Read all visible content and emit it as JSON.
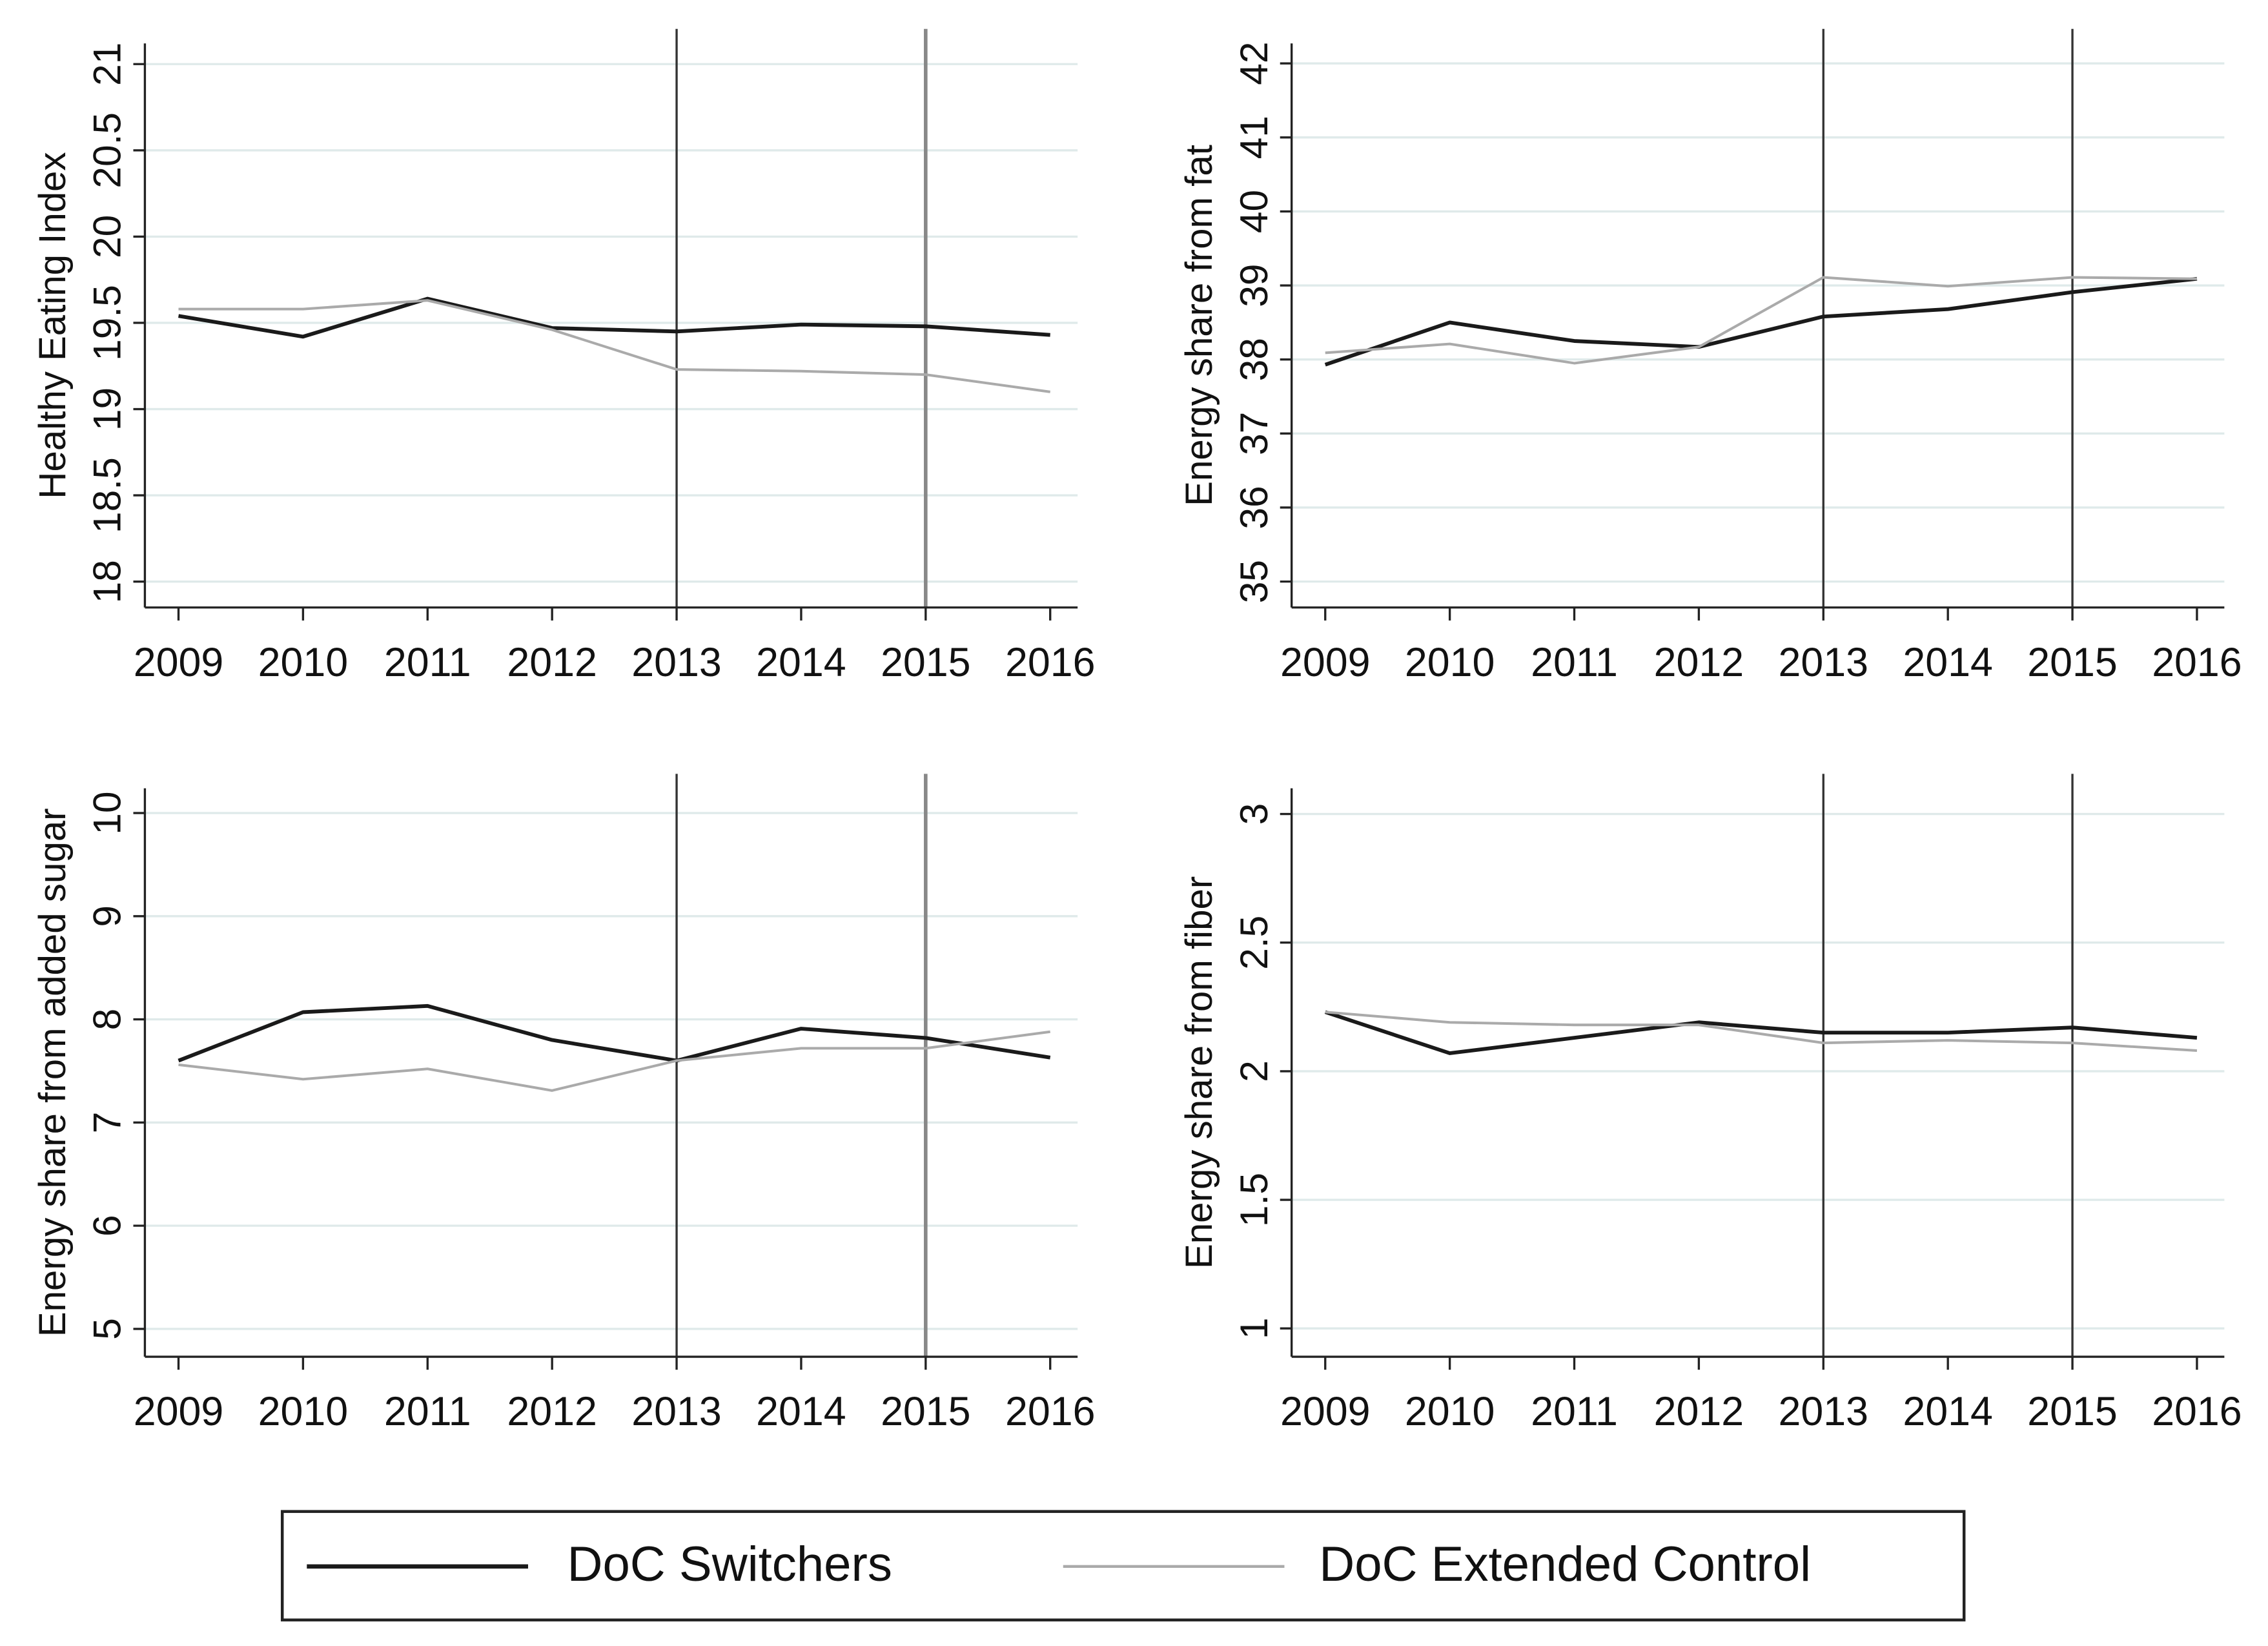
{
  "chart_data": [
    {
      "type": "line",
      "ylabel": "Healthy Eating Index",
      "x": [
        2009,
        2010,
        2011,
        2012,
        2013,
        2014,
        2015,
        2016
      ],
      "xlim": [
        2008.73,
        2016.22
      ],
      "xticks": [
        2009,
        2010,
        2011,
        2012,
        2013,
        2014,
        2015,
        2016
      ],
      "ylim": [
        17.85,
        21.12
      ],
      "yticks": [
        18,
        18.5,
        19,
        19.5,
        20,
        20.5,
        21
      ],
      "grid": true,
      "vlines": [
        {
          "x": 2013,
          "color": "#333333"
        },
        {
          "x": 2015,
          "color": "#888888"
        }
      ],
      "series": [
        {
          "color": "#1a1a1a",
          "values": [
            19.54,
            19.42,
            19.64,
            19.47,
            19.45,
            19.49,
            19.48,
            19.43
          ]
        },
        {
          "color": "#aaaaaa",
          "values": [
            19.58,
            19.58,
            19.63,
            19.46,
            19.23,
            19.22,
            19.2,
            19.1
          ]
        }
      ]
    },
    {
      "type": "line",
      "ylabel": "Energy share from fat",
      "x": [
        2009,
        2010,
        2011,
        2012,
        2013,
        2014,
        2015,
        2016
      ],
      "xlim": [
        2008.73,
        2016.22
      ],
      "xticks": [
        2009,
        2010,
        2011,
        2012,
        2013,
        2014,
        2015,
        2016
      ],
      "ylim": [
        34.65,
        42.27
      ],
      "yticks": [
        35,
        36,
        37,
        38,
        39,
        40,
        41,
        42
      ],
      "grid": true,
      "vlines": [
        {
          "x": 2013,
          "color": "#333333"
        },
        {
          "x": 2015,
          "color": "#333333"
        }
      ],
      "series": [
        {
          "color": "#1a1a1a",
          "values": [
            37.93,
            38.5,
            38.25,
            38.17,
            38.58,
            38.68,
            38.91,
            39.09
          ]
        },
        {
          "color": "#aaaaaa",
          "values": [
            38.09,
            38.21,
            37.95,
            38.17,
            39.11,
            38.99,
            39.11,
            39.09
          ]
        }
      ]
    },
    {
      "type": "line",
      "ylabel": "Energy share from added sugar",
      "x": [
        2009,
        2010,
        2011,
        2012,
        2013,
        2014,
        2015,
        2016
      ],
      "xlim": [
        2008.73,
        2016.22
      ],
      "xticks": [
        2009,
        2010,
        2011,
        2012,
        2013,
        2014,
        2015,
        2016
      ],
      "ylim": [
        4.73,
        10.24
      ],
      "yticks": [
        5,
        6,
        7,
        8,
        9,
        10
      ],
      "grid": true,
      "vlines": [
        {
          "x": 2013,
          "color": "#333333"
        },
        {
          "x": 2015,
          "color": "#888888"
        }
      ],
      "series": [
        {
          "color": "#1a1a1a",
          "values": [
            7.6,
            8.07,
            8.13,
            7.8,
            7.6,
            7.91,
            7.82,
            7.63
          ]
        },
        {
          "color": "#aaaaaa",
          "values": [
            7.56,
            7.42,
            7.52,
            7.31,
            7.6,
            7.72,
            7.72,
            7.88
          ]
        }
      ]
    },
    {
      "type": "line",
      "ylabel": "Energy share from fiber",
      "x": [
        2009,
        2010,
        2011,
        2012,
        2013,
        2014,
        2015,
        2016
      ],
      "xlim": [
        2008.73,
        2016.22
      ],
      "xticks": [
        2009,
        2010,
        2011,
        2012,
        2013,
        2014,
        2015,
        2016
      ],
      "ylim": [
        0.89,
        3.1
      ],
      "yticks": [
        1,
        1.5,
        2,
        2.5,
        3
      ],
      "grid": true,
      "vlines": [
        {
          "x": 2013,
          "color": "#333333"
        },
        {
          "x": 2015,
          "color": "#333333"
        }
      ],
      "series": [
        {
          "color": "#1a1a1a",
          "values": [
            2.23,
            2.07,
            2.13,
            2.19,
            2.15,
            2.15,
            2.17,
            2.13
          ]
        },
        {
          "color": "#aaaaaa",
          "values": [
            2.23,
            2.19,
            2.18,
            2.18,
            2.11,
            2.12,
            2.11,
            2.08
          ]
        }
      ]
    }
  ],
  "legend": {
    "entries": [
      {
        "name": "DoC Switchers",
        "color": "#1a1a1a"
      },
      {
        "name": "DoC Extended Control",
        "color": "#aaaaaa"
      }
    ]
  }
}
